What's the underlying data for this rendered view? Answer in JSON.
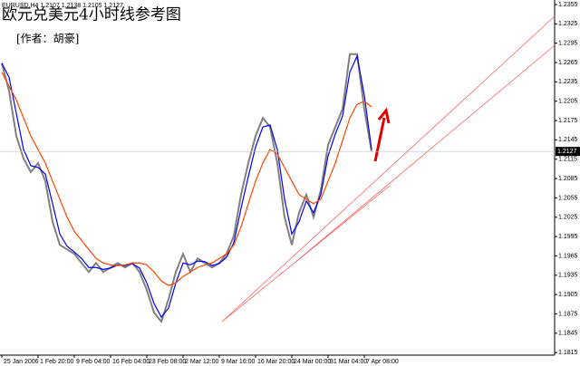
{
  "chart_data": {
    "type": "line",
    "title": "欧元兑美元4小时线参考图",
    "subtitle": "[作者：胡豪]",
    "info": "EURUSD,H4  1.2107 1.2138 1.2105 1.2127",
    "last_price": 1.2127,
    "categories": [
      "25 Jan 2006",
      null,
      null,
      null,
      null,
      "1 Feb 20:00",
      null,
      null,
      null,
      null,
      "9 Feb 04:00",
      null,
      null,
      null,
      null,
      "16 Feb 04:00",
      null,
      null,
      null,
      null,
      "23 Feb 08:00",
      null,
      null,
      null,
      null,
      "2 Mar 12:00",
      null,
      null,
      null,
      null,
      "9 Mar 16:00",
      null,
      null,
      null,
      null,
      "16 Mar 20:00",
      null,
      null,
      null,
      null,
      "24 Mar 00:00",
      null,
      null,
      null,
      null,
      "31 Mar 04:00",
      null,
      null,
      null,
      null,
      "7 Apr 08:00",
      null
    ],
    "series": [
      {
        "color": "#808080",
        "values": [
          1.2264,
          1.2221,
          1.2151,
          1.2116,
          1.2095,
          1.2109,
          1.2081,
          1.2018,
          1.1982,
          1.1975,
          1.1968,
          1.1954,
          1.194,
          1.1954,
          1.194,
          1.1947,
          1.1954,
          1.1947,
          1.1954,
          1.194,
          1.1912,
          1.1877,
          1.1863,
          1.1898,
          1.194,
          1.1968,
          1.194,
          1.1961,
          1.1954,
          1.1947,
          1.1954,
          1.1968,
          1.1996,
          1.206,
          1.2109,
          1.2151,
          1.2179,
          1.2165,
          1.2109,
          1.2025,
          1.1982,
          1.2032,
          1.206,
          1.2025,
          1.2067,
          1.2137,
          1.2165,
          1.2193,
          1.2278,
          1.2278,
          1.2193,
          1.2127
        ]
      },
      {
        "color": "#0000ff",
        "values": [
          1.2264,
          1.2242,
          1.2186,
          1.213,
          1.2105,
          1.2102,
          1.2092,
          1.2046,
          1.1999,
          1.198,
          1.1971,
          1.1961,
          1.1947,
          1.1947,
          1.1944,
          1.1946,
          1.1951,
          1.195,
          1.1953,
          1.1946,
          1.1923,
          1.1891,
          1.187,
          1.1884,
          1.1923,
          1.1954,
          1.1951,
          1.1957,
          1.1956,
          1.195,
          1.1953,
          1.1963,
          1.1985,
          1.2039,
          1.2088,
          1.2134,
          1.2165,
          1.2168,
          1.213,
          1.2053,
          1.1999,
          1.2018,
          1.205,
          1.2032,
          1.206,
          1.212,
          1.2154,
          1.2182,
          1.225,
          1.2275,
          1.2214,
          1.213
        ]
      },
      {
        "color": "#ff4500",
        "values": [
          1.225,
          1.2228,
          1.2207,
          1.2179,
          1.2151,
          1.213,
          1.2109,
          1.2081,
          1.2053,
          1.2025,
          1.2003,
          1.1989,
          1.1975,
          1.1961,
          1.1954,
          1.1951,
          1.195,
          1.1951,
          1.1954,
          1.1954,
          1.1951,
          1.194,
          1.1926,
          1.1919,
          1.1923,
          1.1933,
          1.194,
          1.1947,
          1.1951,
          1.1954,
          1.1961,
          1.1968,
          1.1982,
          1.201,
          1.2046,
          1.2081,
          1.2109,
          1.213,
          1.2123,
          1.2102,
          1.2081,
          1.206,
          1.2053,
          1.2046,
          1.2053,
          1.2081,
          1.2109,
          1.2144,
          1.2179,
          1.22,
          1.2205,
          1.2196
        ]
      }
    ],
    "ylim": [
      1.1811,
      1.2362
    ],
    "yticks": [
      1.2355,
      1.2325,
      1.2295,
      1.2265,
      1.2235,
      1.2205,
      1.2175,
      1.2145,
      1.2115,
      1.2085,
      1.2055,
      1.2025,
      1.1995,
      1.1965,
      1.1935,
      1.1905,
      1.1875,
      1.1845,
      1.1815
    ],
    "grid": false
  }
}
